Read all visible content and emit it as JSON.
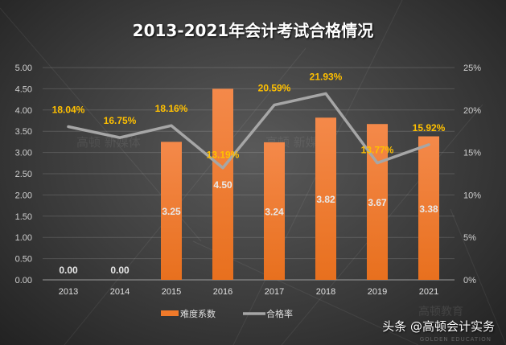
{
  "chart_data": {
    "type": "bar+line",
    "title": "2013-2021年会计考试合格情况",
    "categories": [
      "2013",
      "2014",
      "2015",
      "2016",
      "2017",
      "2018",
      "2019",
      "2021"
    ],
    "series": [
      {
        "name": "难度系数",
        "type": "bar",
        "axis": "left",
        "values": [
          0.0,
          0.0,
          3.25,
          4.5,
          3.24,
          3.82,
          3.67,
          3.38
        ],
        "labels": [
          "0.00",
          "0.00",
          "3.25",
          "4.50",
          "3.24",
          "3.82",
          "3.67",
          "3.38"
        ],
        "color": "#f07a2a"
      },
      {
        "name": "合格率",
        "type": "line",
        "axis": "right",
        "values": [
          18.04,
          16.75,
          18.16,
          13.19,
          20.59,
          21.93,
          13.77,
          15.92
        ],
        "labels": [
          "18.04%",
          "16.75%",
          "18.16%",
          "13.19%",
          "20.59%",
          "21.93%",
          "13.77%",
          "15.92%"
        ],
        "color": "#a6a6a6"
      }
    ],
    "y_left": {
      "range": [
        0,
        5
      ],
      "ticks": [
        "0.00",
        "0.50",
        "1.00",
        "1.50",
        "2.00",
        "2.50",
        "3.00",
        "3.50",
        "4.00",
        "4.50",
        "5.00"
      ]
    },
    "y_right": {
      "range": [
        0,
        25
      ],
      "ticks": [
        "0%",
        "5%",
        "10%",
        "15%",
        "20%",
        "25%"
      ]
    },
    "grid": true,
    "legend": "bottom",
    "bar_label_color": "#e8e8e8",
    "line_label_color": "#ffc000"
  },
  "watermark": {
    "text": "高顿 新媒体",
    "logo_text": "高顿教育",
    "logo_en": "GOLDEN EDUCATION"
  },
  "credit": "头条 @高顿会计实务"
}
